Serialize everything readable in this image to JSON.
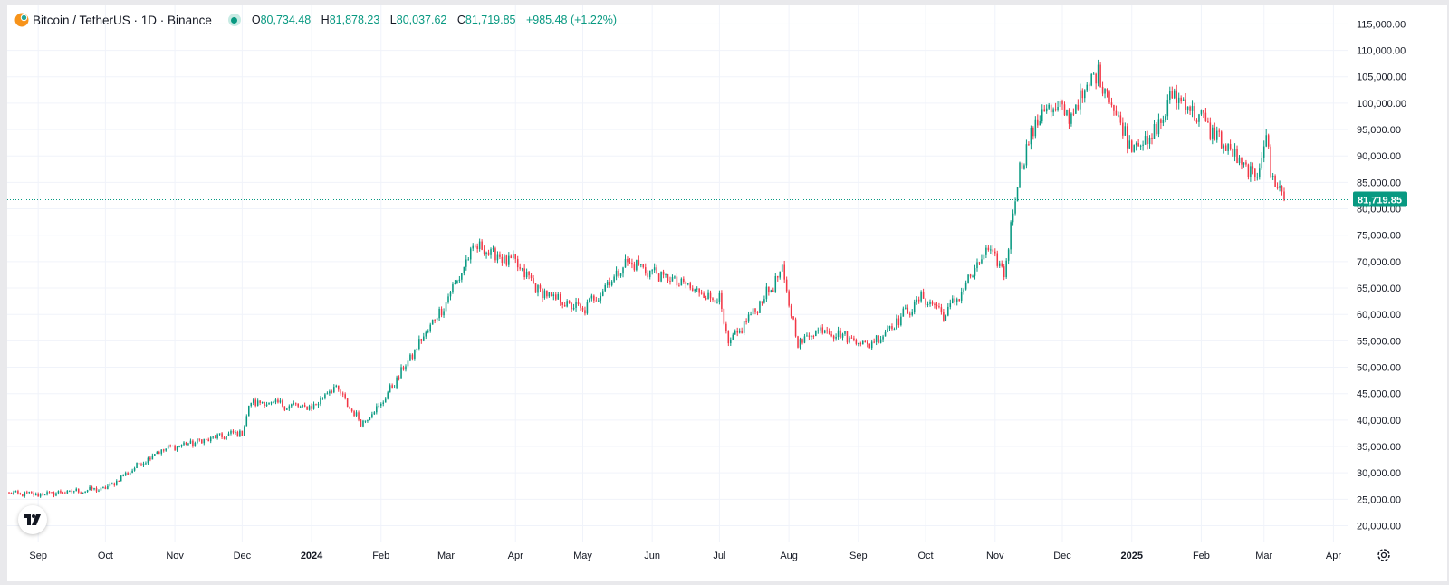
{
  "header": {
    "symbol": "Bitcoin / TetherUS · 1D · Binance",
    "open_label": "O",
    "open": "80,734.48",
    "high_label": "H",
    "high": "81,878.23",
    "low_label": "L",
    "low": "80,037.62",
    "close_label": "C",
    "close": "81,719.85",
    "change": "+985.48 (+1.22%)"
  },
  "colors": {
    "up": "#089981",
    "down": "#f23645",
    "grid": "#f0f3fa",
    "text": "#131722"
  },
  "icons": [
    "bitcoin-icon",
    "market-status-icon",
    "tradingview-logo-icon",
    "settings-gear-icon"
  ],
  "chart_data": {
    "type": "candlestick",
    "title": "Bitcoin / TetherUS · 1D · Binance",
    "ylim": [
      17000,
      118500
    ],
    "y_ticks": [
      "115,000.00",
      "110,000.00",
      "105,000.00",
      "100,000.00",
      "95,000.00",
      "90,000.00",
      "85,000.00",
      "80,000.00",
      "75,000.00",
      "70,000.00",
      "65,000.00",
      "60,000.00",
      "55,000.00",
      "50,000.00",
      "45,000.00",
      "40,000.00",
      "35,000.00",
      "30,000.00",
      "25,000.00",
      "20,000.00"
    ],
    "x_ticks": [
      "Sep",
      "Oct",
      "Nov",
      "Dec",
      "2024",
      "Feb",
      "Mar",
      "Apr",
      "May",
      "Jun",
      "Jul",
      "Aug",
      "Sep",
      "Oct",
      "Nov",
      "Dec",
      "2025",
      "Feb",
      "Mar",
      "Apr"
    ],
    "x_start": "2023-08-19",
    "x_end": "2025-03-10",
    "last_price": 81719.85,
    "last_price_label": "81,719.85",
    "close_path_monthly_approx": {
      "dates": [
        "2023-08-19",
        "2023-09-01",
        "2023-10-01",
        "2023-10-24",
        "2023-11-01",
        "2023-12-01",
        "2023-12-05",
        "2024-01-01",
        "2024-01-11",
        "2024-01-23",
        "2024-02-01",
        "2024-03-01",
        "2024-03-14",
        "2024-04-01",
        "2024-04-13",
        "2024-05-01",
        "2024-05-21",
        "2024-06-01",
        "2024-07-01",
        "2024-07-05",
        "2024-07-29",
        "2024-08-05",
        "2024-08-15",
        "2024-09-06",
        "2024-09-30",
        "2024-10-10",
        "2024-10-29",
        "2024-11-05",
        "2024-11-12",
        "2024-11-22",
        "2024-12-05",
        "2024-12-17",
        "2024-12-30",
        "2025-01-09",
        "2025-01-20",
        "2025-02-01",
        "2025-02-25",
        "2025-03-02",
        "2025-03-04",
        "2025-03-10"
      ],
      "closes": [
        26100,
        25900,
        27000,
        34000,
        35000,
        37700,
        43500,
        42300,
        46500,
        39500,
        43000,
        62500,
        73000,
        69500,
        64000,
        60700,
        70000,
        68000,
        62700,
        54000,
        68000,
        54500,
        57500,
        54200,
        63300,
        59900,
        72300,
        67800,
        88000,
        99000,
        98000,
        106000,
        93000,
        92500,
        102000,
        97000,
        85500,
        94000,
        87000,
        81719.85
      ]
    }
  }
}
